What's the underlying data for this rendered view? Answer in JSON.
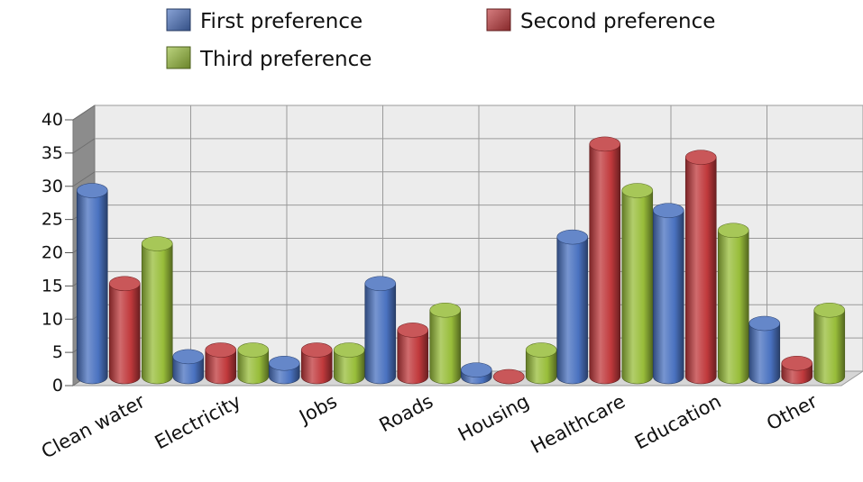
{
  "chart_data": {
    "type": "bar",
    "title": "",
    "xlabel": "",
    "ylabel": "",
    "categories": [
      "Clean water",
      "Electricity",
      "Jobs",
      "Roads",
      "Housing",
      "Healthcare",
      "Education",
      "Other"
    ],
    "series": [
      {
        "name": "First preference",
        "color": "#4a72c0",
        "values": [
          28,
          3,
          2,
          14,
          1,
          21,
          25,
          8
        ]
      },
      {
        "name": "Second preference",
        "color": "#c0393c",
        "values": [
          14,
          4,
          4,
          7,
          0,
          35,
          33,
          2
        ]
      },
      {
        "name": "Third preference",
        "color": "#98bd3a",
        "values": [
          20,
          4,
          4,
          10,
          4,
          28,
          22,
          10
        ]
      }
    ],
    "ylim": [
      0,
      40
    ],
    "yticks": [
      0,
      5,
      10,
      15,
      20,
      25,
      30,
      35,
      40
    ],
    "grid": true,
    "legend_position": "top",
    "style": "3d-cylinder"
  }
}
